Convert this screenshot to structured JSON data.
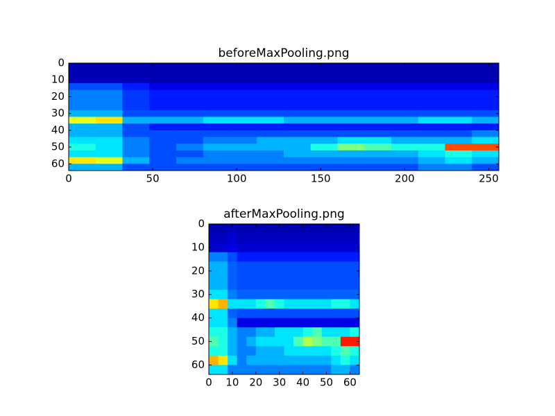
{
  "chart_data": [
    {
      "type": "heatmap",
      "title": "beforeMaxPooling.png",
      "colormap": "jet",
      "xlim": [
        0,
        256
      ],
      "ylim": [
        64,
        0
      ],
      "xticks": [
        0,
        50,
        100,
        150,
        200,
        250
      ],
      "yticks": [
        0,
        10,
        20,
        30,
        40,
        50,
        60
      ],
      "values": [
        [
          0.05,
          0.05,
          0.05,
          0.05,
          0.05,
          0.05,
          0.05,
          0.05,
          0.05,
          0.05,
          0.05,
          0.05,
          0.05,
          0.05,
          0.05,
          0.05
        ],
        [
          0.05,
          0.05,
          0.05,
          0.05,
          0.05,
          0.05,
          0.05,
          0.05,
          0.05,
          0.05,
          0.05,
          0.05,
          0.05,
          0.05,
          0.05,
          0.05
        ],
        [
          0.06,
          0.06,
          0.06,
          0.05,
          0.05,
          0.05,
          0.05,
          0.05,
          0.05,
          0.05,
          0.05,
          0.05,
          0.05,
          0.05,
          0.05,
          0.05
        ],
        [
          0.2,
          0.2,
          0.15,
          0.1,
          0.1,
          0.1,
          0.1,
          0.1,
          0.1,
          0.1,
          0.1,
          0.1,
          0.1,
          0.1,
          0.1,
          0.1
        ],
        [
          0.25,
          0.25,
          0.18,
          0.15,
          0.15,
          0.15,
          0.15,
          0.15,
          0.15,
          0.15,
          0.15,
          0.15,
          0.15,
          0.15,
          0.15,
          0.15
        ],
        [
          0.25,
          0.25,
          0.18,
          0.15,
          0.15,
          0.15,
          0.15,
          0.15,
          0.15,
          0.15,
          0.15,
          0.15,
          0.15,
          0.15,
          0.15,
          0.15
        ],
        [
          0.25,
          0.25,
          0.18,
          0.15,
          0.15,
          0.15,
          0.15,
          0.15,
          0.15,
          0.15,
          0.15,
          0.15,
          0.15,
          0.15,
          0.15,
          0.15
        ],
        [
          0.3,
          0.3,
          0.2,
          0.2,
          0.2,
          0.2,
          0.2,
          0.2,
          0.2,
          0.2,
          0.2,
          0.2,
          0.2,
          0.2,
          0.2,
          0.2
        ],
        [
          0.6,
          0.65,
          0.3,
          0.3,
          0.3,
          0.35,
          0.35,
          0.35,
          0.3,
          0.3,
          0.3,
          0.3,
          0.3,
          0.35,
          0.35,
          0.3
        ],
        [
          0.3,
          0.3,
          0.2,
          0.15,
          0.15,
          0.15,
          0.15,
          0.15,
          0.15,
          0.15,
          0.15,
          0.15,
          0.15,
          0.15,
          0.15,
          0.15
        ],
        [
          0.3,
          0.3,
          0.2,
          0.2,
          0.2,
          0.2,
          0.2,
          0.2,
          0.2,
          0.2,
          0.2,
          0.2,
          0.2,
          0.2,
          0.2,
          0.25
        ],
        [
          0.35,
          0.35,
          0.25,
          0.2,
          0.2,
          0.25,
          0.25,
          0.3,
          0.3,
          0.3,
          0.35,
          0.35,
          0.3,
          0.3,
          0.3,
          0.35
        ],
        [
          0.4,
          0.35,
          0.25,
          0.2,
          0.25,
          0.3,
          0.3,
          0.3,
          0.3,
          0.4,
          0.5,
          0.45,
          0.4,
          0.4,
          0.8,
          0.8
        ],
        [
          0.35,
          0.35,
          0.25,
          0.2,
          0.2,
          0.25,
          0.25,
          0.25,
          0.3,
          0.3,
          0.3,
          0.3,
          0.3,
          0.35,
          0.4,
          0.35
        ],
        [
          0.65,
          0.6,
          0.3,
          0.2,
          0.25,
          0.25,
          0.25,
          0.25,
          0.25,
          0.25,
          0.25,
          0.25,
          0.25,
          0.3,
          0.35,
          0.3
        ],
        [
          0.3,
          0.3,
          0.2,
          0.2,
          0.2,
          0.2,
          0.2,
          0.2,
          0.2,
          0.2,
          0.2,
          0.2,
          0.2,
          0.25,
          0.25,
          0.2
        ]
      ]
    },
    {
      "type": "heatmap",
      "title": "afterMaxPooling.png",
      "colormap": "jet",
      "xlim": [
        0,
        64
      ],
      "ylim": [
        64,
        0
      ],
      "xticks": [
        0,
        10,
        20,
        30,
        40,
        50,
        60
      ],
      "yticks": [
        0,
        10,
        20,
        30,
        40,
        50,
        60
      ],
      "values": [
        [
          0.05,
          0.05,
          0.06,
          0.05,
          0.05,
          0.05,
          0.05,
          0.05,
          0.05,
          0.05,
          0.05,
          0.05,
          0.05,
          0.05,
          0.05,
          0.05
        ],
        [
          0.06,
          0.06,
          0.08,
          0.06,
          0.06,
          0.06,
          0.06,
          0.06,
          0.06,
          0.06,
          0.06,
          0.06,
          0.06,
          0.06,
          0.06,
          0.06
        ],
        [
          0.08,
          0.08,
          0.1,
          0.08,
          0.08,
          0.08,
          0.08,
          0.08,
          0.08,
          0.08,
          0.08,
          0.08,
          0.08,
          0.08,
          0.08,
          0.08
        ],
        [
          0.25,
          0.25,
          0.2,
          0.15,
          0.15,
          0.15,
          0.15,
          0.15,
          0.15,
          0.15,
          0.15,
          0.15,
          0.15,
          0.15,
          0.15,
          0.15
        ],
        [
          0.3,
          0.3,
          0.22,
          0.2,
          0.2,
          0.2,
          0.2,
          0.2,
          0.2,
          0.2,
          0.2,
          0.2,
          0.2,
          0.2,
          0.2,
          0.2
        ],
        [
          0.3,
          0.3,
          0.22,
          0.2,
          0.2,
          0.2,
          0.2,
          0.2,
          0.2,
          0.2,
          0.2,
          0.2,
          0.2,
          0.2,
          0.2,
          0.2
        ],
        [
          0.3,
          0.3,
          0.22,
          0.2,
          0.2,
          0.2,
          0.2,
          0.2,
          0.2,
          0.2,
          0.2,
          0.2,
          0.2,
          0.2,
          0.2,
          0.2
        ],
        [
          0.35,
          0.35,
          0.25,
          0.22,
          0.22,
          0.22,
          0.22,
          0.22,
          0.22,
          0.22,
          0.22,
          0.22,
          0.22,
          0.22,
          0.22,
          0.22
        ],
        [
          0.65,
          0.7,
          0.35,
          0.35,
          0.35,
          0.4,
          0.45,
          0.4,
          0.35,
          0.35,
          0.35,
          0.35,
          0.35,
          0.4,
          0.4,
          0.35
        ],
        [
          0.35,
          0.35,
          0.22,
          0.2,
          0.2,
          0.2,
          0.2,
          0.2,
          0.2,
          0.2,
          0.2,
          0.2,
          0.2,
          0.2,
          0.2,
          0.2
        ],
        [
          0.35,
          0.35,
          0.25,
          0.1,
          0.1,
          0.1,
          0.1,
          0.1,
          0.1,
          0.1,
          0.1,
          0.1,
          0.1,
          0.1,
          0.1,
          0.1
        ],
        [
          0.4,
          0.4,
          0.3,
          0.25,
          0.25,
          0.3,
          0.3,
          0.35,
          0.35,
          0.35,
          0.4,
          0.45,
          0.35,
          0.35,
          0.35,
          0.4
        ],
        [
          0.45,
          0.4,
          0.3,
          0.25,
          0.3,
          0.35,
          0.35,
          0.35,
          0.35,
          0.45,
          0.55,
          0.5,
          0.45,
          0.45,
          0.85,
          0.85
        ],
        [
          0.4,
          0.4,
          0.3,
          0.25,
          0.25,
          0.3,
          0.3,
          0.3,
          0.35,
          0.35,
          0.35,
          0.35,
          0.35,
          0.4,
          0.45,
          0.4
        ],
        [
          0.7,
          0.65,
          0.35,
          0.25,
          0.3,
          0.3,
          0.3,
          0.3,
          0.3,
          0.3,
          0.3,
          0.3,
          0.3,
          0.35,
          0.4,
          0.35
        ],
        [
          0.35,
          0.35,
          0.25,
          0.25,
          0.25,
          0.25,
          0.25,
          0.25,
          0.25,
          0.25,
          0.25,
          0.25,
          0.25,
          0.3,
          0.3,
          0.25
        ]
      ]
    }
  ]
}
